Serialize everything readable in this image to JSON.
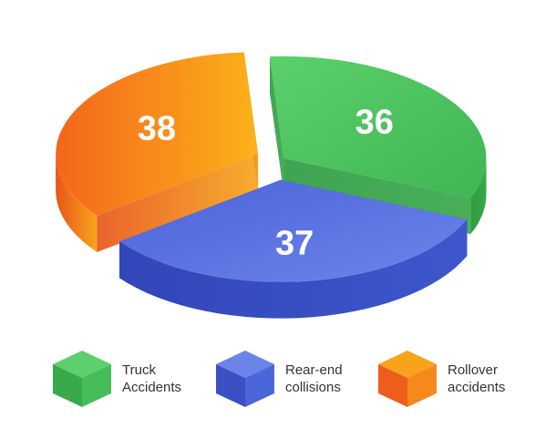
{
  "chart_data": {
    "type": "pie",
    "style": "3d-exploded",
    "categories": [
      "Truck Accidents",
      "Rear-end collisions",
      "Rollover accidents"
    ],
    "values": [
      36,
      37,
      38
    ],
    "colors": [
      "#46c05a",
      "#4a67da",
      "#f28a1c"
    ],
    "legend_position": "bottom"
  },
  "legend": [
    {
      "line1": "Truck",
      "line2": "Accidents",
      "color": "#46c05a"
    },
    {
      "line1": "Rear-end",
      "line2": "collisions",
      "color": "#4a67da"
    },
    {
      "line1": "Rollover",
      "line2": "accidents",
      "color": "#f28a1c"
    }
  ]
}
